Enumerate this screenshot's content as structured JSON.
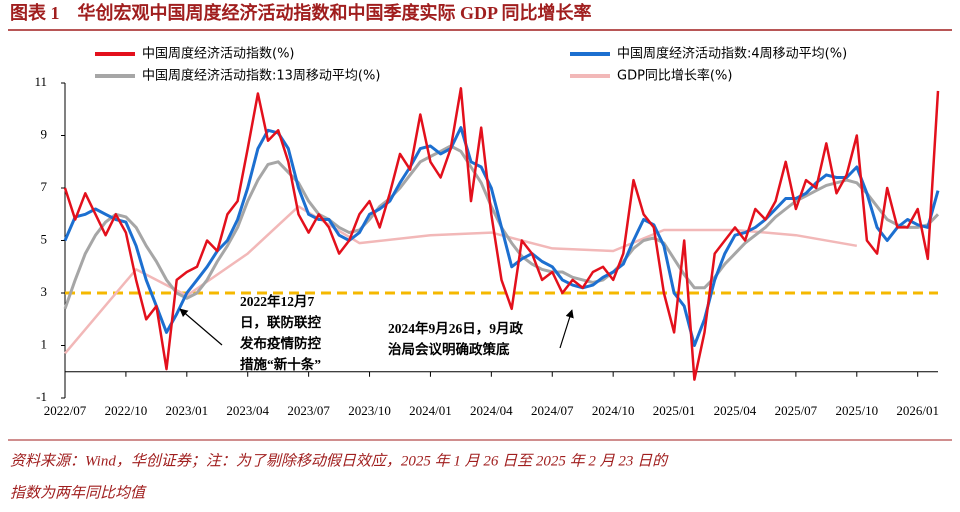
{
  "chart_data": {
    "type": "line",
    "title": "图表 1　华创宏观中国周度经济活动指数和中国季度实际 GDP 同比增长率",
    "source": [
      "资料来源：Wind，华创证券；注：为了剔除移动假日效应，2025 年 1 月 26 日至 2025 年 2 月 23 日的",
      "指数为两年同比均值"
    ],
    "categories": [
      "2022/07",
      null,
      null,
      null,
      null,
      null,
      "2022/10",
      null,
      null,
      null,
      null,
      null,
      "2023/01",
      null,
      null,
      null,
      null,
      null,
      "2023/04",
      null,
      null,
      null,
      null,
      null,
      "2023/07",
      null,
      null,
      null,
      null,
      null,
      "2023/10",
      null,
      null,
      null,
      null,
      null,
      "2024/01",
      null,
      null,
      null,
      null,
      null,
      "2024/04",
      null,
      null,
      null,
      null,
      null,
      "2024/07",
      null,
      null,
      null,
      null,
      null,
      "2024/10",
      null,
      null,
      null,
      null,
      null,
      "2025/01",
      null,
      null,
      null,
      null,
      null,
      "2025/04",
      null,
      null,
      null,
      null,
      null,
      "2025/07",
      null,
      null,
      null,
      null,
      null,
      "2025/10",
      null,
      null,
      null,
      null,
      null,
      "2026/01",
      null,
      null
    ],
    "series": [
      {
        "name": "中国周度经济活动指数(%)",
        "color": "#e3101c",
        "width": 2.5,
        "values": [
          7.0,
          5.8,
          6.8,
          6.0,
          5.2,
          6.0,
          5.3,
          3.5,
          2.0,
          2.5,
          0.1,
          3.5,
          3.8,
          4.0,
          5.0,
          4.6,
          6.0,
          6.5,
          8.5,
          10.6,
          8.8,
          9.2,
          8.0,
          6.0,
          5.3,
          6.0,
          5.5,
          4.5,
          5.0,
          6.0,
          6.5,
          5.5,
          6.8,
          8.3,
          7.7,
          9.8,
          8.0,
          7.4,
          8.5,
          10.8,
          6.5,
          9.3,
          6.0,
          3.5,
          2.4,
          5.0,
          4.5,
          3.5,
          3.8,
          3.0,
          3.5,
          3.2,
          3.8,
          4.0,
          3.5,
          4.5,
          7.3,
          6.0,
          5.5,
          3.0,
          1.5,
          5.0,
          -0.3,
          1.5,
          4.5,
          5.0,
          5.5,
          5.0,
          6.2,
          5.8,
          6.5,
          8.0,
          6.2,
          7.3,
          7.0,
          8.7,
          6.8,
          7.5,
          9.0,
          5.0,
          4.5,
          7.0,
          5.5,
          5.5,
          6.2,
          4.3,
          10.7
        ]
      },
      {
        "name": "中国周度经济活动指数:4周移动平均(%)",
        "color": "#1c6fd0",
        "width": 3,
        "values": [
          5.0,
          5.9,
          6.0,
          6.2,
          6.0,
          5.8,
          5.7,
          4.8,
          3.5,
          2.5,
          1.5,
          2.2,
          3.0,
          3.5,
          4.0,
          4.6,
          5.0,
          5.8,
          7.0,
          8.5,
          9.2,
          9.1,
          8.5,
          7.0,
          6.0,
          5.8,
          5.8,
          5.2,
          5.0,
          5.3,
          6.0,
          6.2,
          6.5,
          7.2,
          7.8,
          8.5,
          8.6,
          8.3,
          8.5,
          9.3,
          8.0,
          7.8,
          7.0,
          5.5,
          4.0,
          4.3,
          4.5,
          4.2,
          4.0,
          3.5,
          3.3,
          3.2,
          3.3,
          3.6,
          3.8,
          4.1,
          5.0,
          5.8,
          5.6,
          4.8,
          3.0,
          2.5,
          1.0,
          2.0,
          3.5,
          4.5,
          5.2,
          5.3,
          5.5,
          5.8,
          6.2,
          6.6,
          6.6,
          6.8,
          7.2,
          7.5,
          7.4,
          7.4,
          7.8,
          6.8,
          5.5,
          5.0,
          5.5,
          5.8,
          5.6,
          5.5,
          6.9
        ]
      },
      {
        "name": "中国周度经济活动指数:13周移动平均(%)",
        "color": "#a6a6a6",
        "width": 3,
        "values": [
          2.4,
          3.5,
          4.5,
          5.2,
          5.7,
          6.0,
          5.9,
          5.5,
          4.8,
          4.2,
          3.5,
          3.0,
          2.8,
          3.0,
          3.5,
          4.2,
          4.8,
          5.5,
          6.5,
          7.3,
          7.9,
          8.0,
          7.6,
          7.2,
          6.5,
          6.0,
          5.8,
          5.5,
          5.3,
          5.4,
          5.8,
          6.3,
          6.6,
          7.0,
          7.5,
          8.0,
          8.2,
          8.4,
          8.6,
          8.4,
          7.8,
          7.2,
          6.3,
          5.5,
          4.9,
          4.4,
          4.1,
          3.9,
          3.8,
          3.8,
          3.6,
          3.5,
          3.4,
          3.5,
          3.8,
          4.2,
          4.7,
          5.0,
          5.1,
          4.9,
          4.3,
          3.7,
          3.2,
          3.2,
          3.6,
          4.1,
          4.5,
          4.9,
          5.2,
          5.5,
          5.9,
          6.2,
          6.5,
          6.7,
          6.9,
          7.1,
          7.2,
          7.3,
          7.2,
          6.8,
          6.3,
          5.8,
          5.6,
          5.5,
          5.5,
          5.6,
          6.0
        ]
      },
      {
        "name": "GDP同比增长率(%)",
        "color": "#f2b8b8",
        "width": 2.5,
        "connect_gaps": true,
        "values": [
          0.7,
          null,
          null,
          null,
          null,
          null,
          null,
          3.9,
          null,
          null,
          null,
          null,
          2.9,
          null,
          null,
          null,
          null,
          null,
          4.5,
          null,
          null,
          null,
          null,
          6.3,
          null,
          null,
          null,
          null,
          null,
          4.9,
          null,
          null,
          null,
          null,
          null,
          null,
          5.2,
          null,
          null,
          null,
          null,
          null,
          5.3,
          null,
          null,
          null,
          null,
          null,
          4.7,
          null,
          null,
          null,
          null,
          null,
          4.6,
          null,
          null,
          null,
          null,
          5.4,
          null,
          null,
          null,
          null,
          null,
          null,
          5.4,
          null,
          null,
          null,
          null,
          null,
          5.2,
          null,
          null,
          null,
          null,
          null,
          4.8,
          null,
          null,
          null,
          null,
          null,
          null,
          null,
          null
        ]
      }
    ],
    "reference_line": {
      "value": 3,
      "color": "#f5b800"
    },
    "annotations": [
      {
        "text": [
          "2022年12月7",
          "日，联防联控",
          "发布疫情防控",
          "措施“新十条”"
        ]
      },
      {
        "text": [
          "2024年9月26日，9月政",
          "治局会议明确政策底"
        ]
      }
    ],
    "ylim": [
      -1,
      11
    ],
    "yticks": [
      -1,
      1,
      3,
      5,
      7,
      9,
      11
    ],
    "grid": false
  }
}
